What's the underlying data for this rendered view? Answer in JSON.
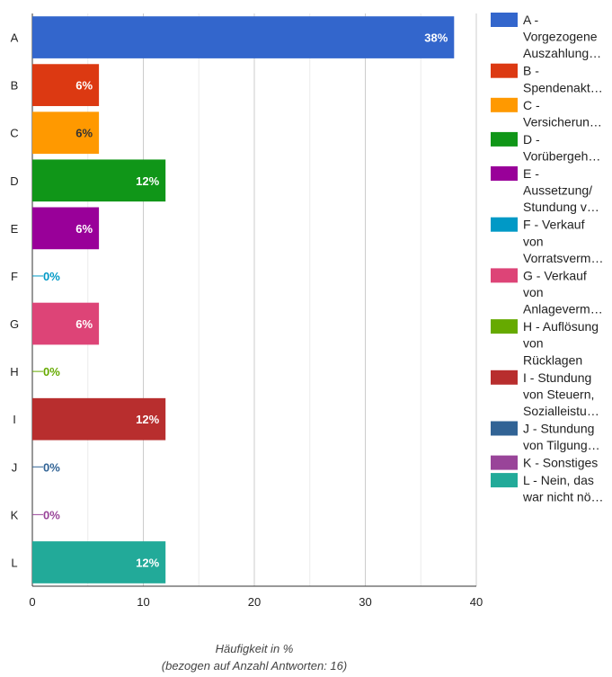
{
  "chart_data": {
    "type": "bar",
    "orientation": "horizontal",
    "categories": [
      "A",
      "B",
      "C",
      "D",
      "E",
      "F",
      "G",
      "H",
      "I",
      "J",
      "K",
      "L"
    ],
    "values": [
      38,
      6,
      6,
      12,
      6,
      0,
      6,
      0,
      12,
      0,
      0,
      12
    ],
    "value_labels": [
      "38%",
      "6%",
      "6%",
      "12%",
      "6%",
      "0%",
      "6%",
      "0%",
      "12%",
      "0%",
      "0%",
      "12%"
    ],
    "colors": [
      "#3366cc",
      "#dc3912",
      "#ff9900",
      "#109618",
      "#990099",
      "#0099c6",
      "#dd4477",
      "#66aa00",
      "#b82e2e",
      "#316395",
      "#994499",
      "#22aa99"
    ],
    "label_colors": [
      "#ffffff",
      "#ffffff",
      "#333333",
      "#ffffff",
      "#ffffff",
      "#0099c6",
      "#ffffff",
      "#66aa00",
      "#ffffff",
      "#316395",
      "#994499",
      "#ffffff"
    ],
    "legend": [
      [
        "A -",
        "Vorgezogene",
        "Auszahlung…"
      ],
      [
        "B -",
        "Spendenakt…"
      ],
      [
        "C -",
        "Versicherun…"
      ],
      [
        "D -",
        "Vorübergeh…"
      ],
      [
        "E -",
        "Aussetzung/",
        "Stundung v…"
      ],
      [
        "F - Verkauf",
        "von",
        "Vorratsverm…"
      ],
      [
        "G - Verkauf",
        "von",
        "Anlageverm…"
      ],
      [
        "H - Auflösung",
        "von",
        "Rücklagen"
      ],
      [
        "I - Stundung",
        "von Steuern,",
        "Sozialleistu…"
      ],
      [
        "J - Stundung",
        "von Tilgung…"
      ],
      [
        "K - Sonstiges"
      ],
      [
        "L - Nein, das",
        "war nicht nö…"
      ]
    ],
    "legend_position": "right",
    "xlim": [
      0,
      40
    ],
    "xticks": [
      "0",
      "10",
      "20",
      "30",
      "40"
    ],
    "grid": true,
    "xlabel": "Häufigkeit in %",
    "xlabel_sub": "(bezogen auf Anzahl Antworten: 16)"
  }
}
